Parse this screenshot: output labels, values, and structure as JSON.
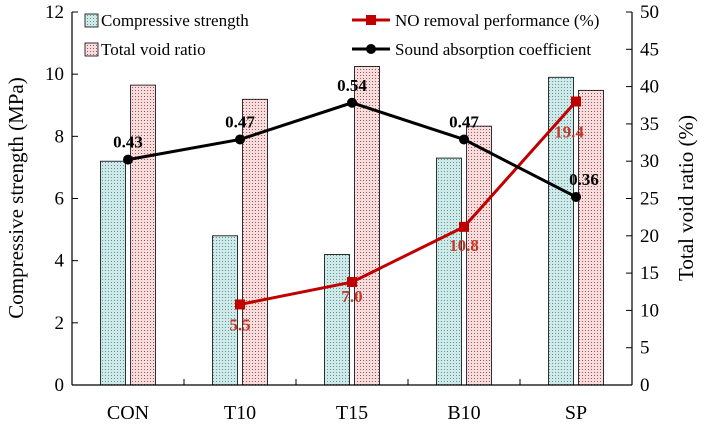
{
  "chart_data": {
    "type": "bar",
    "categories": [
      "CON",
      "T10",
      "T15",
      "B10",
      "SP"
    ],
    "left_axis": {
      "label": "Compressive strength (MPa)",
      "ylim": [
        0,
        12
      ],
      "ticks": [
        "0",
        "2",
        "4",
        "6",
        "8",
        "10",
        "12"
      ]
    },
    "right_axis": {
      "label": "Total void ratio (%)",
      "ylim": [
        0,
        50
      ],
      "ticks": [
        "0",
        "5",
        "10",
        "15",
        "20",
        "25",
        "30",
        "35",
        "40",
        "45",
        "50"
      ]
    },
    "series": [
      {
        "name": "Compressive strength",
        "type": "bar",
        "axis": "left",
        "values": [
          7.2,
          4.8,
          4.2,
          7.3,
          9.9
        ],
        "color": "#a8d4d4"
      },
      {
        "name": "Total void ratio",
        "type": "bar",
        "axis": "right",
        "values": [
          40.2,
          38.3,
          42.7,
          34.7,
          39.5
        ],
        "color": "#f0c8c8"
      },
      {
        "name": "NO removal performance (%)",
        "type": "line",
        "axis": "right",
        "values": [
          null,
          10.8,
          13.8,
          21.2,
          38.0
        ],
        "labels": [
          "",
          "5.5",
          "7.0",
          "10.8",
          "19.4"
        ],
        "color": "#c00000"
      },
      {
        "name": "Sound absorption coefficient",
        "type": "line",
        "axis": "left",
        "values": [
          7.25,
          7.9,
          9.08,
          7.9,
          6.05
        ],
        "labels": [
          "0.43",
          "0.47",
          "0.54",
          "0.47",
          "0.36"
        ],
        "color": "#000000"
      }
    ],
    "legend_position": "top",
    "grid": false
  }
}
